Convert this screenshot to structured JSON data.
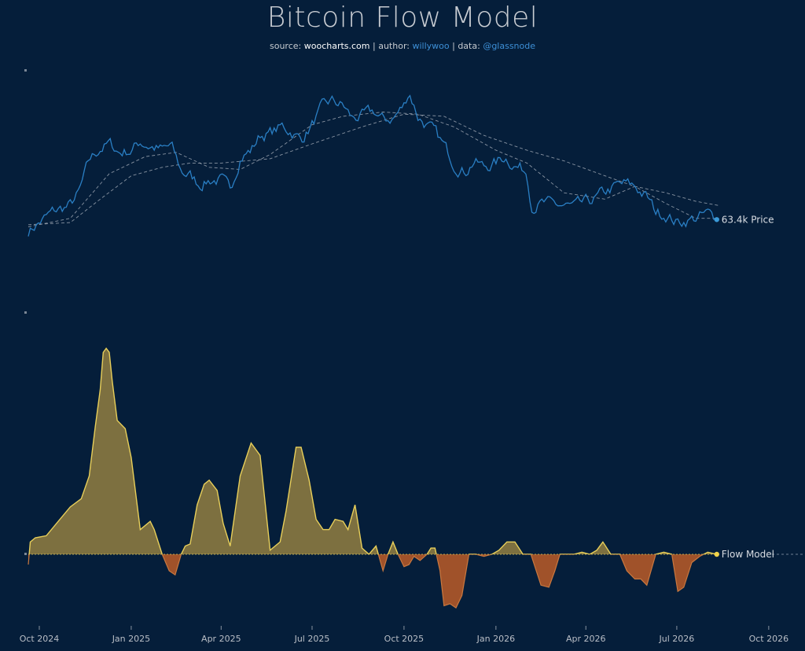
{
  "title": "Bitcoin Flow Model",
  "subtitle": {
    "source_label": "source:",
    "source": "woocharts.com",
    "author_label": "| author:",
    "author": "willywoo",
    "data_label": "| data:",
    "data_source": "@glassnode"
  },
  "colors": {
    "background": "#051e3a",
    "price_line": "#2a7fc4",
    "ma_line": "#aab2bd",
    "flow_positive_fill": "#7d7040",
    "flow_positive_line": "#e8cf5a",
    "flow_negative_fill": "#a0522a",
    "zero_line": "#6e7f93"
  },
  "chart_data": [
    {
      "type": "line",
      "panel": "price",
      "series": [
        {
          "name": "Price",
          "end_label": "63.4k Price",
          "x": [
            "2024-09-20",
            "2024-10-01",
            "2024-10-15",
            "2024-11-01",
            "2024-11-10",
            "2024-11-20",
            "2024-12-01",
            "2024-12-10",
            "2024-12-20",
            "2025-01-01",
            "2025-01-10",
            "2025-01-20",
            "2025-02-01",
            "2025-02-10",
            "2025-02-20",
            "2025-03-01",
            "2025-03-10",
            "2025-03-20",
            "2025-04-01",
            "2025-04-10",
            "2025-04-20",
            "2025-05-01",
            "2025-05-10",
            "2025-05-20",
            "2025-06-01",
            "2025-06-10",
            "2025-06-20",
            "2025-07-01",
            "2025-07-10",
            "2025-07-20",
            "2025-08-01",
            "2025-08-10",
            "2025-08-20",
            "2025-09-01",
            "2025-09-10",
            "2025-09-20",
            "2025-10-01",
            "2025-10-06",
            "2025-10-15",
            "2025-11-01",
            "2025-11-10",
            "2025-11-20",
            "2025-12-01",
            "2025-12-10",
            "2025-12-20",
            "2026-01-01",
            "2026-01-10",
            "2026-01-20",
            "2026-02-01",
            "2026-02-06",
            "2026-02-15",
            "2026-03-01",
            "2026-03-10",
            "2026-03-20",
            "2026-04-01",
            "2026-04-10",
            "2026-04-20",
            "2026-05-01",
            "2026-05-10",
            "2026-05-20",
            "2026-06-01",
            "2026-06-10",
            "2026-06-20",
            "2026-07-01",
            "2026-07-10",
            "2026-07-20",
            "2026-08-01",
            "2026-08-10"
          ],
          "y": [
            58,
            62,
            67,
            70,
            76,
            91,
            97,
            99,
            95,
            96,
            100,
            98,
            96,
            98,
            86,
            84,
            80,
            82,
            82,
            77,
            93,
            96,
            103,
            104,
            107,
            105,
            101,
            108,
            115,
            119,
            117,
            111,
            112,
            114,
            110,
            111,
            117,
            124,
            112,
            104,
            98,
            90,
            86,
            91,
            88,
            90,
            93,
            89,
            86,
            70,
            71,
            70,
            70,
            69,
            71,
            73,
            76,
            79,
            80,
            79,
            74,
            67,
            66,
            62,
            63,
            64,
            66,
            63.4
          ]
        },
        {
          "name": "MA short",
          "x": [
            "2024-09-20",
            "2024-11-01",
            "2024-12-10",
            "2025-01-15",
            "2025-02-15",
            "2025-03-20",
            "2025-04-20",
            "2025-05-20",
            "2025-07-01",
            "2025-08-01",
            "2025-09-10",
            "2025-10-15",
            "2025-11-20",
            "2026-01-01",
            "2026-02-01",
            "2026-03-10",
            "2026-04-20",
            "2026-05-20",
            "2026-06-20",
            "2026-07-20",
            "2026-08-12"
          ],
          "y": [
            60,
            64,
            85,
            93,
            95,
            88,
            87,
            94,
            108,
            112,
            114,
            113,
            107,
            96,
            90,
            76,
            73,
            79,
            71,
            64,
            64
          ]
        },
        {
          "name": "MA long",
          "x": [
            "2024-09-20",
            "2024-11-01",
            "2024-12-01",
            "2025-01-01",
            "2025-02-01",
            "2025-03-01",
            "2025-04-01",
            "2025-05-20",
            "2025-07-01",
            "2025-08-20",
            "2025-10-01",
            "2025-11-10",
            "2025-12-20",
            "2026-02-01",
            "2026-03-10",
            "2026-04-20",
            "2026-05-20",
            "2026-06-20",
            "2026-07-20",
            "2026-08-12"
          ],
          "y": [
            61,
            62,
            73,
            84,
            88,
            90,
            90,
            92,
            99,
            107,
            113,
            112,
            103,
            96,
            91,
            84,
            79,
            76,
            72,
            70
          ]
        }
      ]
    },
    {
      "type": "area",
      "panel": "flow",
      "series": [
        {
          "name": "Flow Model",
          "end_label": "Flow Model",
          "x": [
            "2024-09-20",
            "2024-09-22",
            "2024-09-27",
            "2024-10-08",
            "2024-10-20",
            "2024-11-01",
            "2024-11-12",
            "2024-11-20",
            "2024-11-26",
            "2024-12-01",
            "2024-12-04",
            "2024-12-07",
            "2024-12-10",
            "2024-12-13",
            "2024-12-18",
            "2024-12-26",
            "2025-01-01",
            "2025-01-10",
            "2025-01-20",
            "2025-01-24",
            "2025-02-01",
            "2025-02-08",
            "2025-02-14",
            "2025-02-20",
            "2025-02-24",
            "2025-03-01",
            "2025-03-08",
            "2025-03-15",
            "2025-03-20",
            "2025-03-28",
            "2025-04-03",
            "2025-04-10",
            "2025-04-20",
            "2025-05-01",
            "2025-05-10",
            "2025-05-20",
            "2025-05-30",
            "2025-06-05",
            "2025-06-15",
            "2025-06-20",
            "2025-06-28",
            "2025-07-05",
            "2025-07-12",
            "2025-07-18",
            "2025-07-24",
            "2025-08-01",
            "2025-08-06",
            "2025-08-13",
            "2025-08-20",
            "2025-08-27",
            "2025-09-03",
            "2025-09-10",
            "2025-09-15",
            "2025-09-20",
            "2025-09-25",
            "2025-10-01",
            "2025-10-06",
            "2025-10-11",
            "2025-10-17",
            "2025-10-24",
            "2025-10-28",
            "2025-11-01",
            "2025-11-06",
            "2025-11-10",
            "2025-11-16",
            "2025-11-22",
            "2025-11-28",
            "2025-12-05",
            "2025-12-12",
            "2025-12-20",
            "2025-12-28",
            "2026-01-04",
            "2026-01-12",
            "2026-01-20",
            "2026-01-28",
            "2026-02-05",
            "2026-02-15",
            "2026-02-23",
            "2026-03-01",
            "2026-03-06",
            "2026-03-12",
            "2026-03-20",
            "2026-03-28",
            "2026-04-05",
            "2026-04-12",
            "2026-04-18",
            "2026-04-26",
            "2026-05-05",
            "2026-05-12",
            "2026-05-20",
            "2026-05-26",
            "2026-06-01",
            "2026-06-10",
            "2026-06-18",
            "2026-06-26",
            "2026-07-02",
            "2026-07-08",
            "2026-07-16",
            "2026-07-24",
            "2026-08-01",
            "2026-08-10"
          ],
          "y": [
            -0.5,
            0.6,
            0.8,
            0.9,
            1.6,
            2.3,
            2.7,
            3.8,
            6.2,
            8.0,
            9.8,
            10.0,
            9.8,
            8.4,
            6.5,
            6.1,
            4.7,
            1.2,
            1.6,
            1.2,
            0,
            -0.8,
            -1.0,
            0,
            0.4,
            0.5,
            2.4,
            3.4,
            3.6,
            3.1,
            1.5,
            0.4,
            3.8,
            5.4,
            4.8,
            0.2,
            0.6,
            2.1,
            5.2,
            5.2,
            3.6,
            1.7,
            1.2,
            1.2,
            1.7,
            1.6,
            1.2,
            2.4,
            0.3,
            0,
            0.4,
            -0.8,
            0,
            0.6,
            0,
            -0.6,
            -0.5,
            -0.1,
            -0.3,
            0,
            0.3,
            0.3,
            -0.8,
            -2.5,
            -2.4,
            -2.6,
            -2.0,
            0,
            0,
            -0.1,
            0,
            0.2,
            0.6,
            0.6,
            0,
            0,
            -1.5,
            -1.6,
            -0.8,
            0,
            0,
            0,
            0.1,
            0,
            0.2,
            0.6,
            0,
            0,
            -0.8,
            -1.2,
            -1.2,
            -1.5,
            0,
            0.1,
            0,
            -1.8,
            -1.6,
            -0.4,
            -0.1,
            0.1,
            0
          ]
        }
      ]
    }
  ],
  "axis": {
    "x_ticks": [
      "Oct 2024",
      "Jan 2025",
      "Apr 2025",
      "Jul 2025",
      "Oct 2025",
      "Jan 2026",
      "Apr 2026",
      "Jul 2026",
      "Oct 2026"
    ],
    "x_range": [
      "2024-09-20",
      "2026-10-20"
    ]
  }
}
